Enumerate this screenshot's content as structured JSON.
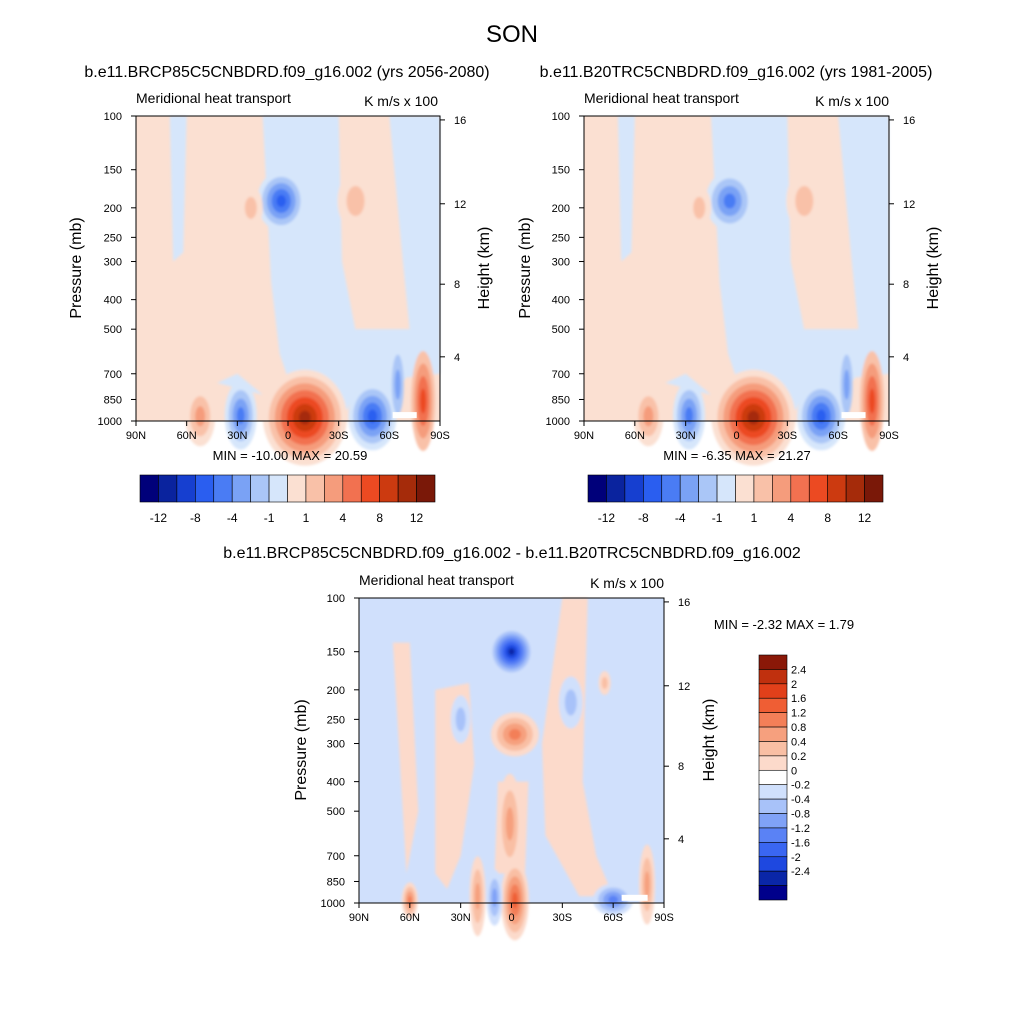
{
  "figure": {
    "title": "SON"
  },
  "colors": {
    "diverging_12": [
      "#00007a",
      "#0a239e",
      "#163fd0",
      "#2a5ef0",
      "#4a7cf4",
      "#7aa2f5",
      "#aac6f7",
      "#d6e6fb",
      "#fbe0d2",
      "#f9c1a8",
      "#f59c7c",
      "#f27150",
      "#ec4a22",
      "#cc3a10",
      "#a52b0a",
      "#7a1808"
    ],
    "diverging_2_4": [
      "#00008b",
      "#0a26a8",
      "#1e48e0",
      "#3a66f2",
      "#5a82f5",
      "#80a2f7",
      "#a8c2f9",
      "#d0e0fc",
      "#ffffff",
      "#fcdacb",
      "#f9bfa4",
      "#f6a07e",
      "#f37f58",
      "#ef5e34",
      "#e2401a",
      "#c0300e",
      "#8a1808"
    ],
    "missing": "#ffffff",
    "neutral_light_blue": "#d6e6fb",
    "neutral_light_red": "#fbe0d2"
  },
  "chart_data": [
    {
      "type": "heatmap",
      "panel": "top-left",
      "title": "b.e11.BRCP85C5CNBDRD.f09_g16.002 (yrs 2056-2080)",
      "left_label": "Meridional heat transport",
      "right_label": "K m/s x 100",
      "xlabel": "",
      "ylabel": "Pressure (mb)",
      "y2label": "Height (km)",
      "x_ticks": [
        "90N",
        "60N",
        "30N",
        "0",
        "30S",
        "60S",
        "90S"
      ],
      "y_ticks": [
        "100",
        "150",
        "200",
        "250",
        "300",
        "400",
        "500",
        "700",
        "850",
        "1000"
      ],
      "y2_ticks": [
        "16",
        "12",
        "8",
        "4"
      ],
      "stats": "MIN = -10.00  MAX = 20.59",
      "min": -10.0,
      "max": 20.59,
      "colorbar_labels": [
        "-12",
        "-8",
        "-4",
        "-1",
        "1",
        "4",
        "8",
        "12"
      ],
      "features": [
        {
          "lat": 5,
          "p": 190,
          "value": -6,
          "note": "upper-tropospheric negative core"
        },
        {
          "lat": -10,
          "p": 970,
          "value": 20,
          "note": "near-surface positive core"
        },
        {
          "lat": -50,
          "p": 960,
          "value": -6
        },
        {
          "lat": -75,
          "p": 860,
          "value": 12
        },
        {
          "lat": 50,
          "p": 960,
          "value": 2
        },
        {
          "lat": 30,
          "p": 950,
          "value": -3
        },
        {
          "lat": -40,
          "p": 200,
          "value": 2
        }
      ]
    },
    {
      "type": "heatmap",
      "panel": "top-right",
      "title": "b.e11.B20TRC5CNBDRD.f09_g16.002 (yrs 1981-2005)",
      "left_label": "Meridional heat transport",
      "right_label": "K m/s x 100",
      "xlabel": "",
      "ylabel": "Pressure (mb)",
      "y2label": "Height (km)",
      "x_ticks": [
        "90N",
        "60N",
        "30N",
        "0",
        "30S",
        "60S",
        "90S"
      ],
      "y_ticks": [
        "100",
        "150",
        "200",
        "250",
        "300",
        "400",
        "500",
        "700",
        "850",
        "1000"
      ],
      "y2_ticks": [
        "16",
        "12",
        "8",
        "4"
      ],
      "stats": "MIN =  -6.35  MAX =  21.27",
      "min": -6.35,
      "max": 21.27,
      "colorbar_labels": [
        "-12",
        "-8",
        "-4",
        "-1",
        "1",
        "4",
        "8",
        "12"
      ],
      "features": [
        {
          "lat": 5,
          "p": 200,
          "value": -4
        },
        {
          "lat": -10,
          "p": 970,
          "value": 21
        },
        {
          "lat": -50,
          "p": 960,
          "value": -5
        },
        {
          "lat": -75,
          "p": 860,
          "value": 12
        },
        {
          "lat": 50,
          "p": 960,
          "value": 2
        },
        {
          "lat": 30,
          "p": 950,
          "value": -3
        },
        {
          "lat": -40,
          "p": 200,
          "value": 2
        }
      ]
    },
    {
      "type": "heatmap",
      "panel": "bottom",
      "title": "b.e11.BRCP85C5CNBDRD.f09_g16.002 - b.e11.B20TRC5CNBDRD.f09_g16.002",
      "left_label": "Meridional heat transport",
      "right_label": "K m/s x 100",
      "xlabel": "",
      "ylabel": "Pressure (mb)",
      "y2label": "Height (km)",
      "x_ticks": [
        "90N",
        "60N",
        "30N",
        "0",
        "30S",
        "60S",
        "90S"
      ],
      "y_ticks": [
        "100",
        "150",
        "200",
        "250",
        "300",
        "400",
        "500",
        "700",
        "850",
        "1000"
      ],
      "y2_ticks": [
        "16",
        "12",
        "8",
        "4"
      ],
      "stats": "MIN =  -2.32  MAX =   1.79",
      "min": -2.32,
      "max": 1.79,
      "colorbar_labels": [
        "2.4",
        "2",
        "1.6",
        "1.2",
        "0.8",
        "0.4",
        "0.2",
        "0",
        "-0.2",
        "-0.4",
        "-0.8",
        "-1.2",
        "-1.6",
        "-2",
        "-2.4"
      ],
      "features": [
        {
          "lat": 0,
          "p": 150,
          "value": -2.3
        },
        {
          "lat": 0,
          "p": 280,
          "value": 1.0
        },
        {
          "lat": 0,
          "p": 550,
          "value": 1.0
        },
        {
          "lat": 0,
          "p": 980,
          "value": 1.6
        },
        {
          "lat": -60,
          "p": 970,
          "value": -1.2
        },
        {
          "lat": -80,
          "p": 850,
          "value": 0.6
        },
        {
          "lat": 60,
          "p": 980,
          "value": 0.8
        }
      ]
    }
  ]
}
